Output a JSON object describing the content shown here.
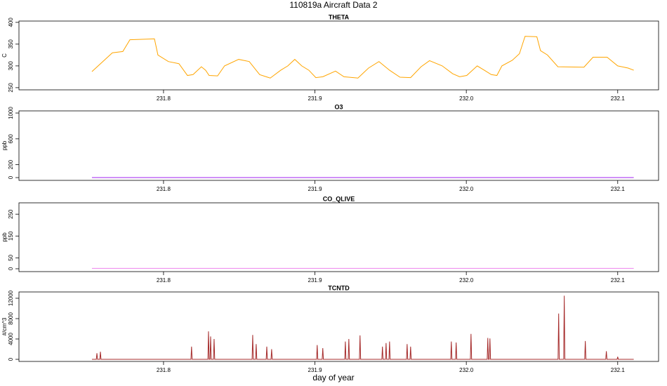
{
  "title": "110819a   Aircraft Data 2",
  "x_label": "day of year",
  "chart_data": [
    {
      "type": "line",
      "title": "THETA",
      "y_label": "C",
      "xlim": [
        231.7045,
        232.127
      ],
      "xticks": [
        231.8,
        231.9,
        {
          "value": 232,
          "label": "232.0"
        },
        232.1
      ],
      "ylim": [
        245,
        403
      ],
      "yticks": [
        250,
        300,
        350,
        400
      ],
      "series": [
        {
          "color": "#ffa500",
          "x": [
            231.7527,
            231.7662,
            231.7731,
            231.7778,
            231.794,
            231.7963,
            231.8032,
            231.8102,
            231.8158,
            231.8195,
            231.825,
            231.8278,
            231.8301,
            231.8357,
            231.8403,
            231.8496,
            231.8566,
            231.8635,
            231.8705,
            231.8774,
            231.8821,
            231.8867,
            231.8913,
            231.896,
            231.9006,
            231.9052,
            231.9136,
            231.9192,
            231.9284,
            231.9354,
            231.9423,
            231.9493,
            231.9562,
            231.9632,
            231.9701,
            231.9757,
            231.9841,
            231.991,
            231.9956,
            232.0003,
            232.0072,
            232.0119,
            232.0165,
            232.0202,
            232.0235,
            232.0304,
            232.0351,
            232.0388,
            232.0466,
            232.049,
            232.0536,
            232.0605,
            232.0777,
            232.0837,
            232.093,
            232.1,
            232.1069,
            232.1106
          ],
          "values": [
            287,
            330,
            333,
            360,
            362,
            325,
            310,
            305,
            278,
            280,
            298,
            290,
            278,
            277,
            300,
            315,
            310,
            280,
            272,
            290,
            300,
            315,
            300,
            290,
            273,
            275,
            288,
            275,
            272,
            295,
            310,
            290,
            274,
            273,
            298,
            312,
            300,
            282,
            275,
            278,
            300,
            290,
            280,
            278,
            300,
            313,
            328,
            368,
            367,
            335,
            325,
            298,
            297,
            320,
            320,
            300,
            295,
            290
          ]
        }
      ]
    },
    {
      "type": "line",
      "title": "O3",
      "y_label": "ppb",
      "xlim": [
        231.7045,
        232.127
      ],
      "xticks": [
        231.8,
        231.9,
        {
          "value": 232,
          "label": "232.0"
        },
        232.1
      ],
      "ylim": [
        -43,
        1033
      ],
      "yticks": [
        0,
        200,
        600,
        1000
      ],
      "series": [
        {
          "color": "#a020f0",
          "x": [
            231.7527,
            232.1106
          ],
          "values": [
            0,
            0
          ]
        }
      ]
    },
    {
      "type": "line",
      "title": "CO_QLIVE",
      "y_label": "ppb",
      "xlim": [
        231.7045,
        232.127
      ],
      "xticks": [
        231.8,
        231.9,
        {
          "value": 232,
          "label": "232.0"
        },
        232.1
      ],
      "ylim": [
        -13,
        302
      ],
      "yticks": [
        0,
        50,
        150,
        250
      ],
      "series": [
        {
          "color": "#ee82ee",
          "x": [
            231.7527,
            232.1106
          ],
          "values": [
            2,
            2
          ]
        }
      ]
    },
    {
      "type": "line",
      "title": "TCNTD",
      "y_label": "#/cm^3",
      "xlim": [
        231.7045,
        232.127
      ],
      "xticks": [
        231.8,
        231.9,
        {
          "value": 232,
          "label": "232.0"
        },
        232.1
      ],
      "ylim": [
        -414,
        13240
      ],
      "yticks": [
        0,
        4000,
        8000,
        12000
      ],
      "series": [
        {
          "color": "#a52a2a",
          "x": [
            231.7527,
            231.7556,
            231.756,
            231.7564,
            231.7579,
            231.7583,
            231.7587,
            231.8181,
            231.8185,
            231.8189,
            231.8293,
            231.8297,
            231.8301,
            231.8307,
            231.8311,
            231.8315,
            231.833,
            231.8334,
            231.8338,
            231.8585,
            231.8589,
            231.8593,
            231.8608,
            231.8612,
            231.8616,
            231.8678,
            231.8682,
            231.8686,
            231.871,
            231.8714,
            231.8718,
            231.9011,
            231.9015,
            231.9019,
            231.9048,
            231.9052,
            231.9056,
            231.9197,
            231.9201,
            231.9205,
            231.922,
            231.9224,
            231.9228,
            231.9294,
            231.9298,
            231.9302,
            231.9442,
            231.9446,
            231.945,
            231.9466,
            231.947,
            231.9474,
            231.9489,
            231.9493,
            231.9497,
            231.9605,
            231.9609,
            231.9613,
            231.9628,
            231.9632,
            231.9636,
            231.9897,
            231.9901,
            231.9905,
            231.9929,
            231.9933,
            231.9937,
            232.0027,
            232.0031,
            232.0035,
            232.0138,
            232.0142,
            232.0146,
            232.0152,
            232.0156,
            232.016,
            232.0606,
            232.061,
            232.0614,
            232.0643,
            232.0647,
            232.0651,
            232.0782,
            232.0786,
            232.079,
            232.0921,
            232.0925,
            232.0929,
            232.0996,
            232.1,
            232.1004,
            232.1106
          ],
          "values": [
            0,
            0,
            1200,
            0,
            0,
            1500,
            0,
            0,
            2500,
            0,
            0,
            5500,
            0,
            0,
            4500,
            0,
            0,
            4000,
            0,
            0,
            4800,
            0,
            0,
            3000,
            0,
            0,
            2500,
            0,
            0,
            2000,
            0,
            0,
            2800,
            0,
            0,
            2200,
            0,
            0,
            3500,
            0,
            0,
            4000,
            0,
            0,
            4700,
            0,
            0,
            2500,
            0,
            0,
            3200,
            0,
            0,
            3500,
            0,
            0,
            3000,
            0,
            0,
            2500,
            0,
            0,
            3500,
            0,
            0,
            3300,
            0,
            0,
            5000,
            0,
            0,
            4200,
            0,
            0,
            4100,
            0,
            0,
            9000,
            0,
            0,
            12500,
            0,
            0,
            3600,
            0,
            0,
            1600,
            0,
            0,
            500,
            0,
            0
          ]
        }
      ]
    }
  ]
}
